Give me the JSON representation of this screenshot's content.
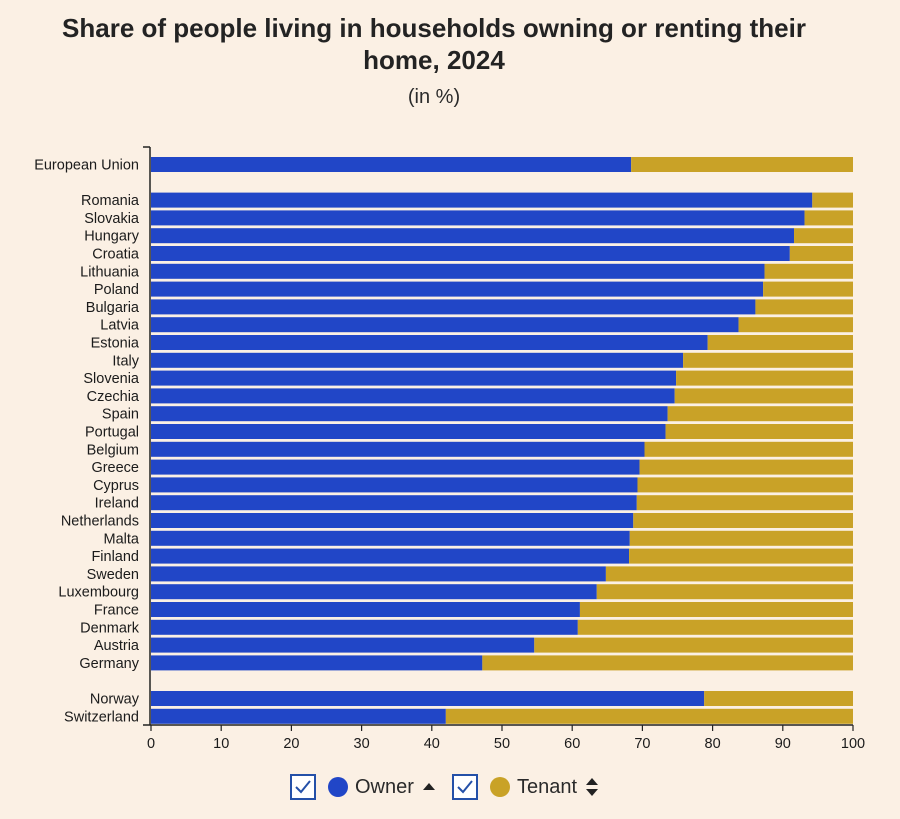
{
  "title": "Share of people living in households owning or renting their home, 2024",
  "subtitle": "(in %)",
  "colors": {
    "owner": "#2146c7",
    "tenant": "#c9a227",
    "background": "#fbf0e4"
  },
  "legend": {
    "owner": {
      "label": "Owner",
      "checked": true,
      "sort_icon": "sort-up-icon"
    },
    "tenant": {
      "label": "Tenant",
      "checked": true,
      "sort_icon": "sort-both-icon"
    }
  },
  "chart_data": {
    "type": "bar",
    "orientation": "horizontal",
    "stacked": true,
    "categories": [
      "European Union",
      "Romania",
      "Slovakia",
      "Hungary",
      "Croatia",
      "Lithuania",
      "Poland",
      "Bulgaria",
      "Latvia",
      "Estonia",
      "Italy",
      "Slovenia",
      "Czechia",
      "Spain",
      "Portugal",
      "Belgium",
      "Greece",
      "Cyprus",
      "Ireland",
      "Netherlands",
      "Malta",
      "Finland",
      "Sweden",
      "Luxembourg",
      "France",
      "Denmark",
      "Austria",
      "Germany",
      "Norway",
      "Switzerland"
    ],
    "groups": [
      1,
      27,
      2
    ],
    "series": [
      {
        "name": "Owner",
        "values": [
          68.4,
          94.2,
          93.1,
          91.6,
          91.0,
          87.4,
          87.2,
          86.1,
          83.7,
          79.3,
          75.8,
          74.8,
          74.6,
          73.6,
          73.3,
          70.3,
          69.6,
          69.3,
          69.2,
          68.7,
          68.2,
          68.1,
          64.8,
          63.5,
          61.1,
          60.8,
          54.6,
          47.2,
          78.8,
          42.0
        ]
      },
      {
        "name": "Tenant",
        "values": [
          31.6,
          5.8,
          6.9,
          8.4,
          9.0,
          12.6,
          12.8,
          13.9,
          16.3,
          20.7,
          24.2,
          25.2,
          25.4,
          26.4,
          26.7,
          29.7,
          30.4,
          30.7,
          30.8,
          31.3,
          31.8,
          31.9,
          35.2,
          36.5,
          38.9,
          39.2,
          45.4,
          52.8,
          21.2,
          58.0
        ]
      }
    ],
    "xlim": [
      0,
      100
    ],
    "xticks": [
      0,
      10,
      20,
      30,
      40,
      50,
      60,
      70,
      80,
      90,
      100
    ],
    "xlabel": "",
    "ylabel": "",
    "grid": false
  }
}
